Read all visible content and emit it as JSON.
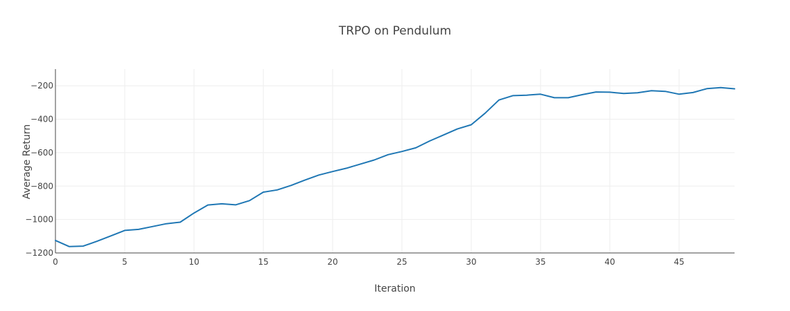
{
  "chart_data": {
    "type": "line",
    "title": "TRPO on Pendulum",
    "xlabel": "Iteration",
    "ylabel": "Average Return",
    "xlim": [
      0,
      49
    ],
    "ylim": [
      -1200,
      -100
    ],
    "xticks": [
      0,
      5,
      10,
      15,
      20,
      25,
      30,
      35,
      40,
      45
    ],
    "xtick_labels": [
      "0",
      "5",
      "10",
      "15",
      "20",
      "25",
      "30",
      "35",
      "40",
      "45"
    ],
    "yticks": [
      -1200,
      -1000,
      -800,
      -600,
      -400,
      -200
    ],
    "ytick_labels": [
      "−1200",
      "−1000",
      "−800",
      "−600",
      "−400",
      "−200"
    ],
    "grid": true,
    "series": [
      {
        "color": "#1f77b4",
        "x": [
          0,
          1,
          2,
          3,
          4,
          5,
          6,
          7,
          8,
          9,
          10,
          11,
          12,
          13,
          14,
          15,
          16,
          17,
          18,
          19,
          20,
          21,
          22,
          23,
          24,
          25,
          26,
          27,
          28,
          29,
          30,
          31,
          32,
          33,
          34,
          35,
          36,
          37,
          38,
          39,
          40,
          41,
          42,
          43,
          44,
          45,
          46,
          47,
          48,
          49
        ],
        "y": [
          -1125,
          -1162,
          -1159,
          -1130,
          -1098,
          -1065,
          -1059,
          -1042,
          -1025,
          -1016,
          -961,
          -913,
          -906,
          -912,
          -887,
          -836,
          -823,
          -796,
          -764,
          -734,
          -713,
          -693,
          -668,
          -644,
          -612,
          -593,
          -571,
          -530,
          -494,
          -458,
          -433,
          -364,
          -285,
          -259,
          -256,
          -250,
          -271,
          -271,
          -253,
          -237,
          -238,
          -246,
          -242,
          -229,
          -233,
          -250,
          -240,
          -217,
          -211,
          -218
        ]
      }
    ]
  }
}
